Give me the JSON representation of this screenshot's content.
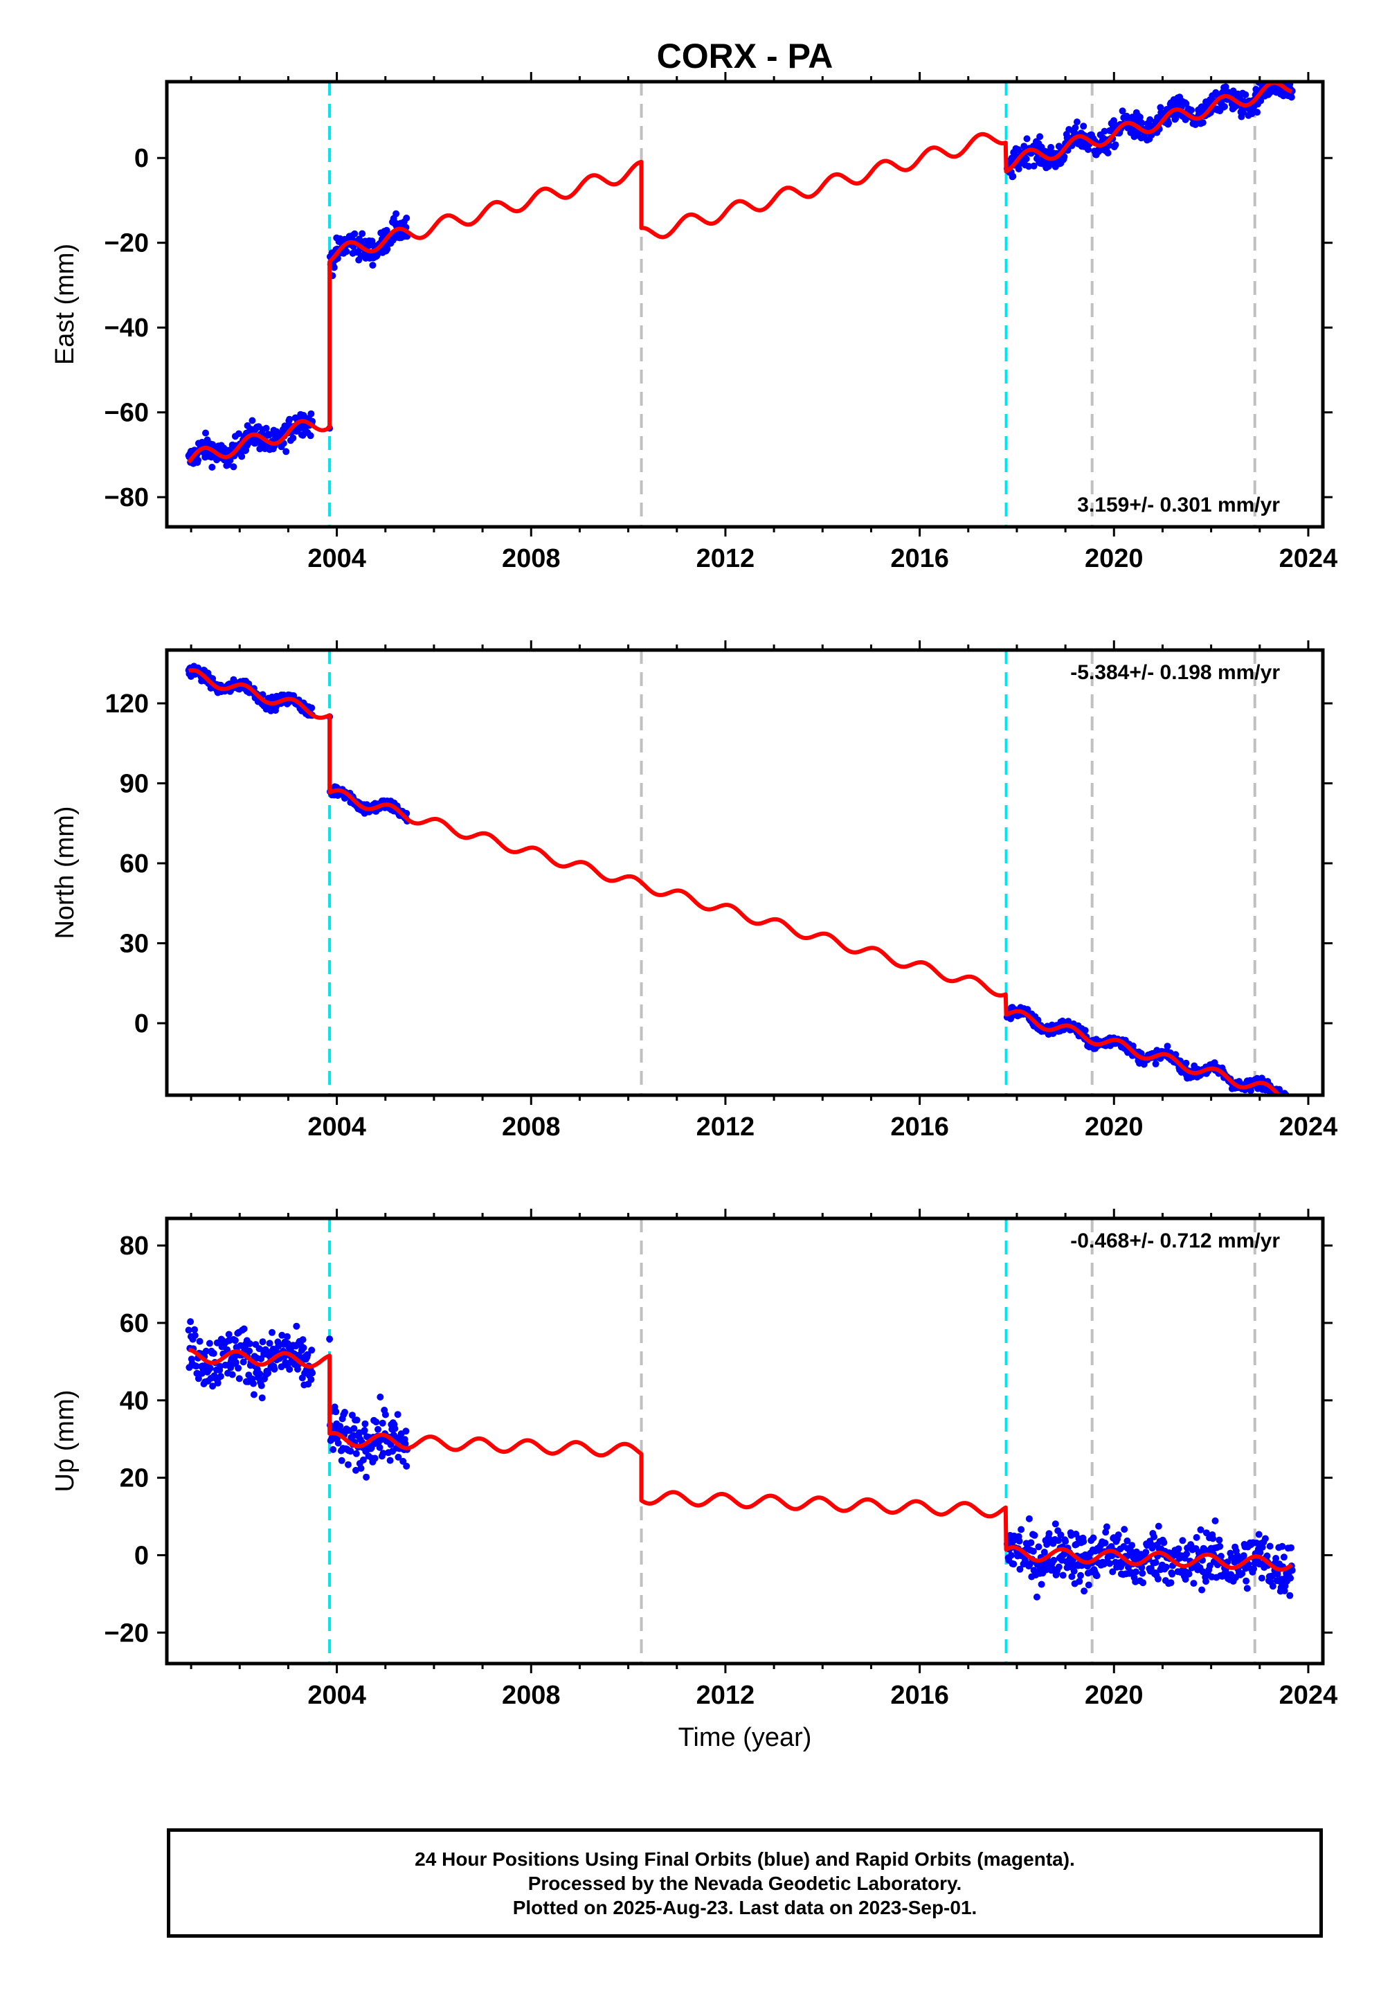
{
  "title": "CORX - PA",
  "x_label": "Time (year)",
  "footer": {
    "line1": "24 Hour Positions Using Final Orbits (blue) and Rapid Orbits (magenta).",
    "line2": "Processed by the Nevada Geodetic Laboratory.",
    "line3": "Plotted on 2025-Aug-23. Last data on 2023-Sep-01."
  },
  "colors": {
    "observations": "#0000ff",
    "model": "#ff0000",
    "equipment_change": "#00e5ee",
    "other_event": "#c0c0c0"
  },
  "chart_data": [
    {
      "type": "scatter",
      "component": "east",
      "ylabel": "East (mm)",
      "rate_label": "3.159+/- 0.301 mm/yr",
      "xlim": [
        2000.5,
        2024.3
      ],
      "ylim": [
        -87,
        18
      ],
      "x_ticks": [
        2004,
        2008,
        2012,
        2016,
        2020,
        2024
      ],
      "y_ticks": [
        -80,
        -60,
        -40,
        -20,
        0
      ],
      "cyan_lines": [
        2003.85,
        2017.78
      ],
      "gray_lines": [
        2010.27,
        2019.55,
        2022.9
      ],
      "data_segments": [
        [
          2000.95,
          2003.5
        ],
        [
          2003.85,
          2005.45
        ],
        [
          2017.8,
          2023.67
        ]
      ],
      "model": [
        {
          "start": 2000.95,
          "end": 2003.85,
          "offset": -71.2,
          "slope": 3.16,
          "amp": 1.8,
          "phase": 0.0
        },
        {
          "start": 2003.85,
          "end": 2010.27,
          "offset": -23.0,
          "slope": 3.16,
          "amp": 1.8,
          "phase": 0.0
        },
        {
          "start": 2010.27,
          "end": 2017.78,
          "offset": -18.3,
          "slope": 3.16,
          "amp": 1.8,
          "phase": 0.0
        },
        {
          "start": 2017.78,
          "end": 2023.67,
          "offset": -1.4,
          "slope": 3.16,
          "amp": 1.8,
          "phase": 0.0
        }
      ],
      "scatter_noise": 2.2
    },
    {
      "type": "scatter",
      "component": "north",
      "ylabel": "North (mm)",
      "rate_label": "-5.384+/- 0.198 mm/yr",
      "xlim": [
        2000.5,
        2024.3
      ],
      "ylim": [
        -27,
        140
      ],
      "x_ticks": [
        2004,
        2008,
        2012,
        2016,
        2020,
        2024
      ],
      "y_ticks": [
        0,
        30,
        60,
        90,
        120
      ],
      "cyan_lines": [
        2003.85,
        2017.78
      ],
      "gray_lines": [
        2010.27,
        2019.55,
        2022.9
      ],
      "data_segments": [
        [
          2000.95,
          2003.5
        ],
        [
          2003.85,
          2005.45
        ],
        [
          2017.8,
          2023.67
        ]
      ],
      "model": [
        {
          "start": 2000.95,
          "end": 2003.85,
          "offset": 131.0,
          "slope": -5.38,
          "amp": 2.0,
          "phase": 1.0
        },
        {
          "start": 2003.85,
          "end": 2010.27,
          "offset": 86.5,
          "slope": -5.38,
          "amp": 2.0,
          "phase": 1.0
        },
        {
          "start": 2010.27,
          "end": 2017.78,
          "offset": 52.0,
          "slope": -5.38,
          "amp": 2.0,
          "phase": 1.0
        },
        {
          "start": 2017.78,
          "end": 2023.67,
          "offset": 4.0,
          "slope": -5.38,
          "amp": 2.0,
          "phase": 1.0
        }
      ],
      "scatter_noise": 1.6
    },
    {
      "type": "scatter",
      "component": "up",
      "ylabel": "Up (mm)",
      "rate_label": "-0.468+/- 0.712 mm/yr",
      "xlim": [
        2000.5,
        2024.3
      ],
      "ylim": [
        -28,
        87
      ],
      "x_ticks": [
        2004,
        2008,
        2012,
        2016,
        2020,
        2024
      ],
      "y_ticks": [
        -20,
        0,
        20,
        40,
        60,
        80
      ],
      "cyan_lines": [
        2003.85,
        2017.78
      ],
      "gray_lines": [
        2010.27,
        2019.55,
        2022.9
      ],
      "data_segments": [
        [
          2000.95,
          2003.5
        ],
        [
          2003.85,
          2005.45
        ],
        [
          2017.8,
          2023.67
        ]
      ],
      "model": [
        {
          "start": 2000.95,
          "end": 2003.85,
          "offset": 51.5,
          "slope": -0.47,
          "amp": 1.6,
          "phase": 2.0
        },
        {
          "start": 2003.85,
          "end": 2010.27,
          "offset": 30.0,
          "slope": -0.47,
          "amp": 1.6,
          "phase": 2.0
        },
        {
          "start": 2010.27,
          "end": 2017.78,
          "offset": 15.0,
          "slope": -0.47,
          "amp": 1.6,
          "phase": 2.0
        },
        {
          "start": 2017.78,
          "end": 2023.67,
          "offset": 0.5,
          "slope": -0.47,
          "amp": 1.6,
          "phase": 2.0
        }
      ],
      "scatter_noise": 5.0
    }
  ]
}
